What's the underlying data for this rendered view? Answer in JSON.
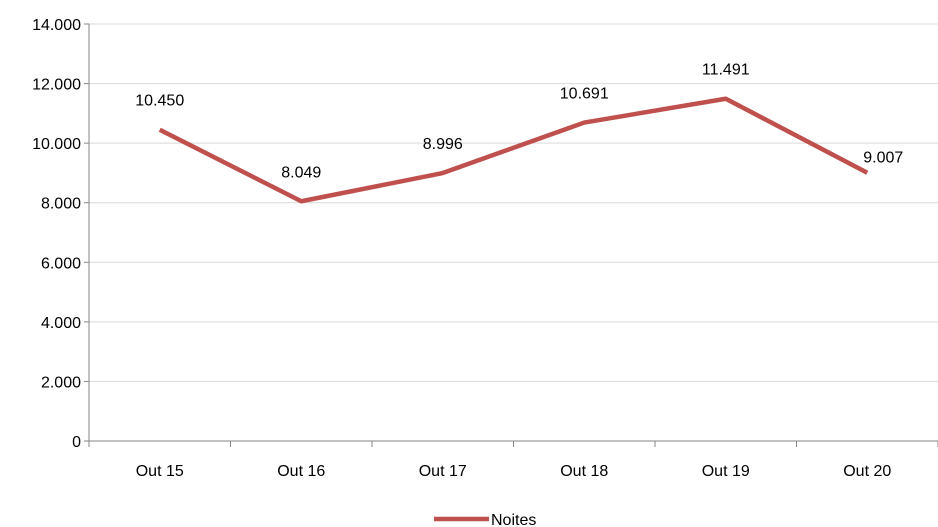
{
  "chart_data": {
    "type": "line",
    "title": "",
    "xlabel": "",
    "ylabel": "",
    "categories": [
      "Out 15",
      "Out 16",
      "Out 17",
      "Out 18",
      "Out 19",
      "Out 20"
    ],
    "series": [
      {
        "name": "Noites",
        "values": [
          10450,
          8049,
          8996,
          10691,
          11491,
          9007
        ],
        "data_labels": [
          "10.450",
          "8.049",
          "8.996",
          "10.691",
          "11.491",
          "9.007"
        ]
      }
    ],
    "ylim": [
      0,
      14000
    ],
    "y_ticks": [
      0,
      2000,
      4000,
      6000,
      8000,
      10000,
      12000,
      14000
    ],
    "y_tick_labels": [
      "0",
      "2.000",
      "4.000",
      "6.000",
      "8.000",
      "10.000",
      "12.000",
      "14.000"
    ],
    "grid": "horizontal",
    "legend_position": "bottom",
    "colors": {
      "series": "#c0504d",
      "grid": "#d9d9d9",
      "axis": "#868686"
    }
  }
}
